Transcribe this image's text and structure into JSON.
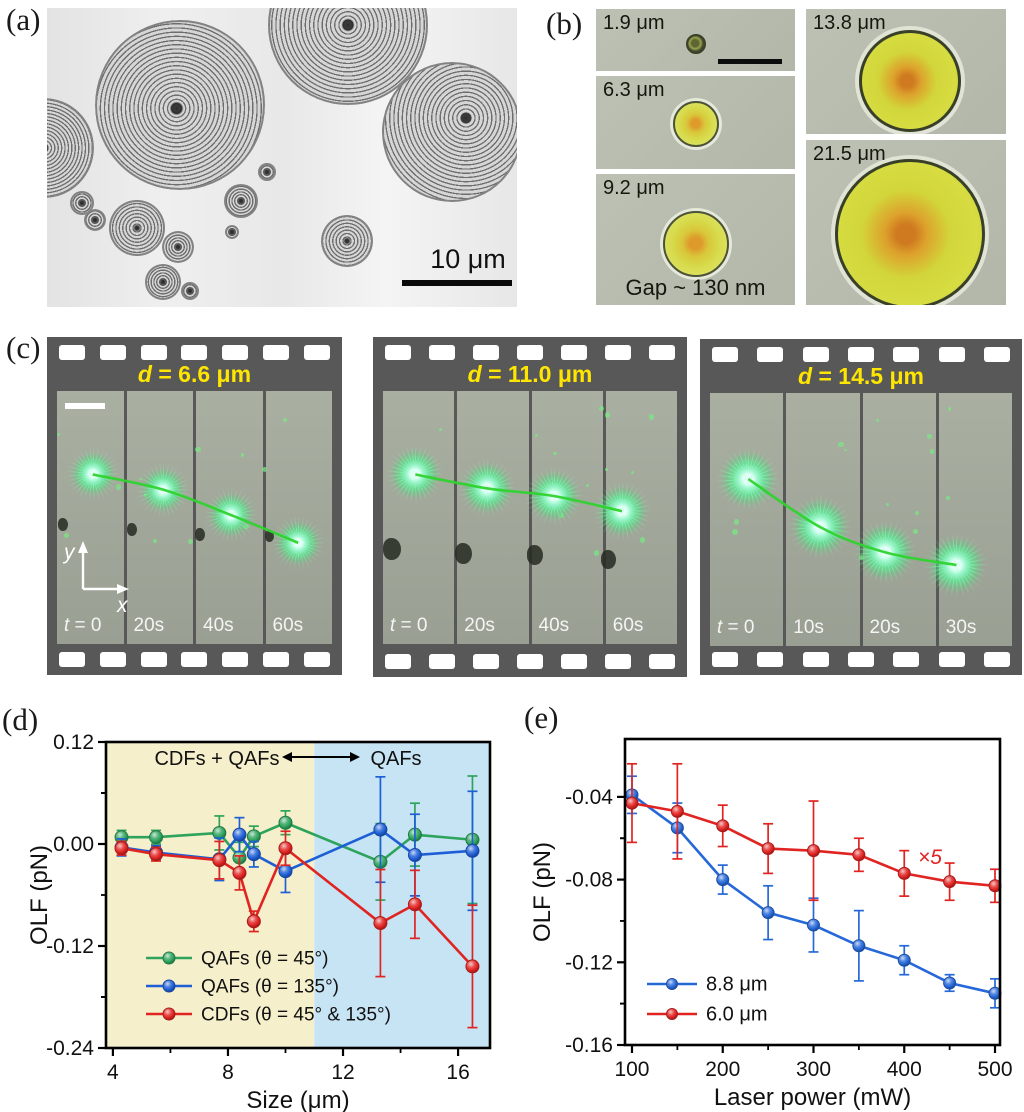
{
  "panel_a": {
    "label": "(a)",
    "scale_bar_label": "10 μm"
  },
  "panel_b": {
    "label": "(b)",
    "images": [
      {
        "size_label": "1.9 μm"
      },
      {
        "size_label": "6.3 μm"
      },
      {
        "size_label": "9.2 μm",
        "caption": "Gap ~ 130 nm"
      },
      {
        "size_label": "13.8 μm"
      },
      {
        "size_label": "21.5 μm"
      }
    ]
  },
  "panel_c": {
    "label": "(c)",
    "axis_x": "x",
    "axis_y": "y",
    "strips": [
      {
        "title_var": "d",
        "title_rest": "= 6.6 μm",
        "times": [
          {
            "v": "t",
            "r": "= 0"
          },
          {
            "r": "20s"
          },
          {
            "r": "40s"
          },
          {
            "r": "60s"
          }
        ]
      },
      {
        "title_var": "d",
        "title_rest": "= 11.0 μm",
        "times": [
          {
            "v": "t",
            "r": "= 0"
          },
          {
            "r": "20s"
          },
          {
            "r": "40s"
          },
          {
            "r": "60s"
          }
        ]
      },
      {
        "title_var": "d",
        "title_rest": "= 14.5 μm",
        "times": [
          {
            "v": "t",
            "r": "= 0"
          },
          {
            "r": "10s"
          },
          {
            "r": "20s"
          },
          {
            "r": "30s"
          }
        ]
      }
    ]
  },
  "chart_data": [
    {
      "id": "d",
      "type": "line",
      "panel_label": "(d)",
      "xlabel": "Size (μm)",
      "ylabel": "OLF (pN)",
      "xlim": [
        3.76,
        17.11
      ],
      "ylim": [
        -0.24,
        0.12
      ],
      "xticks": {
        "values": [
          4,
          8,
          12,
          16
        ],
        "labels": [
          "4",
          "8",
          "12",
          "16"
        ]
      },
      "yticks": {
        "values": [
          0.12,
          0,
          -0.12,
          -0.24
        ],
        "labels": [
          "0.12",
          "0.00",
          "-0.12",
          "-0.24"
        ]
      },
      "regions": [
        {
          "from": 3.76,
          "to": 11,
          "color": "#f6efcb"
        },
        {
          "from": 11,
          "to": 17.11,
          "color": "#c7e4f5"
        }
      ],
      "region_annotation": {
        "left": "CDFs + QAFs",
        "right": "QAFs"
      },
      "x": [
        4.3,
        5.5,
        7.7,
        8.4,
        8.9,
        10.0,
        13.3,
        14.5,
        16.5
      ],
      "series": [
        {
          "name": "QAFs (θ = 45°)",
          "color": "#2ea35c",
          "values": [
            0.008,
            0.008,
            0.013,
            -0.016,
            0.009,
            0.025,
            -0.021,
            0.011,
            0.005
          ],
          "errors": [
            0.008,
            0.008,
            0.02,
            0.018,
            0.012,
            0.014,
            0.045,
            0.037,
            0.075
          ]
        },
        {
          "name": "QAFs (θ = 135°)",
          "color": "#1e5fd6",
          "values": [
            -0.004,
            -0.01,
            -0.018,
            0.011,
            -0.012,
            -0.032,
            0.017,
            -0.013,
            -0.008
          ],
          "errors": [
            0.01,
            0.008,
            0.025,
            0.02,
            0.015,
            0.025,
            0.062,
            0.048,
            0.07
          ]
        },
        {
          "name": "CDFs (θ = 45° & 135°)",
          "color": "#e02422",
          "values": [
            -0.005,
            -0.012,
            -0.019,
            -0.034,
            -0.091,
            -0.005,
            -0.093,
            -0.071,
            -0.144
          ],
          "errors": [
            0.008,
            0.008,
            0.022,
            0.02,
            0.012,
            0.02,
            0.063,
            0.04,
            0.072
          ]
        }
      ],
      "legend_position": "bottom-left-inside",
      "grid": false
    },
    {
      "id": "e",
      "type": "line",
      "panel_label": "(e)",
      "xlabel": "Laser power (mW)",
      "ylabel": "OLF (pN)",
      "xlim": [
        92.3,
        505.5
      ],
      "ylim": [
        -0.16,
        -0.012
      ],
      "xticks": {
        "values": [
          100,
          200,
          300,
          400,
          500
        ],
        "labels": [
          "100",
          "200",
          "300",
          "400",
          "500"
        ]
      },
      "yticks": {
        "values": [
          -0.04,
          -0.08,
          -0.12,
          -0.16
        ],
        "labels": [
          "-0.04",
          "-0.08",
          "-0.12",
          "-0.16"
        ]
      },
      "x": [
        100,
        150,
        200,
        250,
        300,
        350,
        400,
        450,
        500
      ],
      "series": [
        {
          "name": "8.8 μm",
          "color": "#2668d8",
          "values": [
            -0.039,
            -0.055,
            -0.08,
            -0.096,
            -0.102,
            -0.112,
            -0.119,
            -0.13,
            -0.135
          ],
          "errors": [
            0.009,
            0.012,
            0.007,
            0.013,
            0.013,
            0.017,
            0.007,
            0.004,
            0.007
          ]
        },
        {
          "name": "6.0 μm",
          "color": "#e02422",
          "values": [
            -0.043,
            -0.047,
            -0.054,
            -0.065,
            -0.066,
            -0.068,
            -0.077,
            -0.081,
            -0.083
          ],
          "errors": [
            0.019,
            0.023,
            0.01,
            0.012,
            0.024,
            0.008,
            0.011,
            0.009,
            0.008
          ]
        }
      ],
      "annotation": {
        "text": "×5",
        "color": "#e02422"
      },
      "legend_position": "bottom-left-inside",
      "grid": false
    }
  ]
}
